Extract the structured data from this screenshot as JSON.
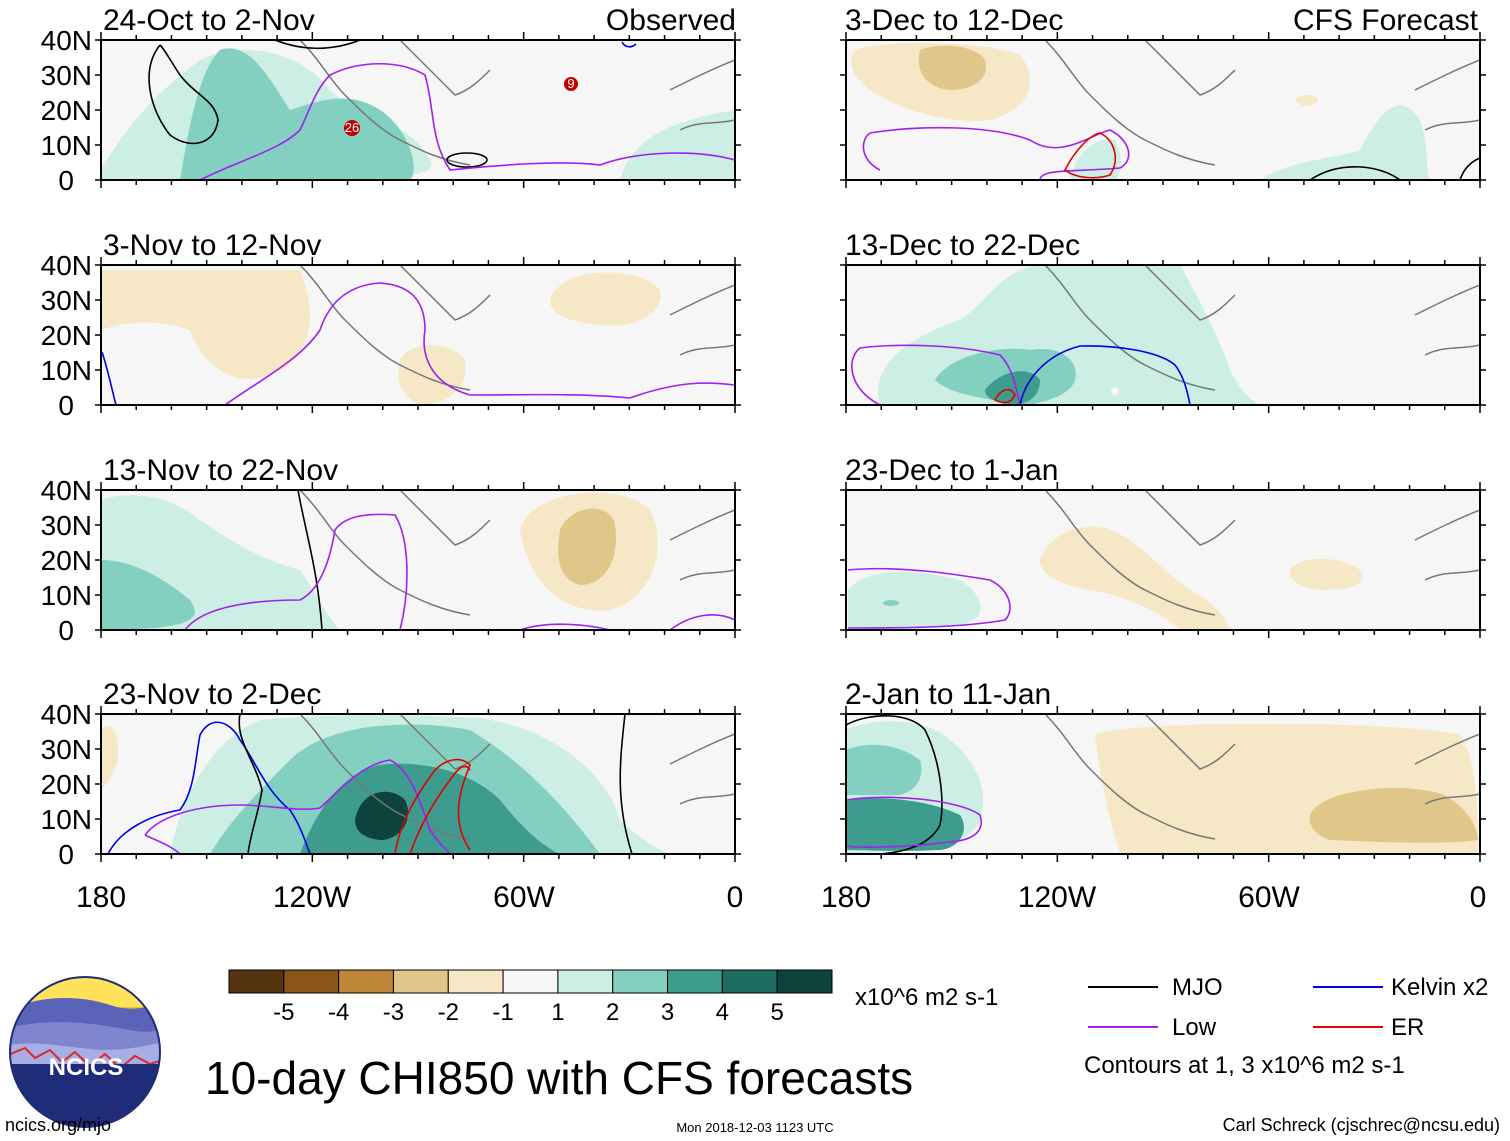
{
  "figure": {
    "title": "10-day CHI850 with CFS forecasts",
    "left_column_label": "Observed",
    "right_column_label": "CFS Forecast",
    "footer_left": "ncics.org/mjo",
    "footer_center": "Mon 2018-12-03 1123 UTC",
    "footer_right": "Carl Schreck (cjschrec@ncsu.edu)",
    "logo_text": "NCICS"
  },
  "panels_left": [
    {
      "title": "24-Oct to 2-Nov"
    },
    {
      "title": "3-Nov to 12-Nov"
    },
    {
      "title": "13-Nov to 22-Nov"
    },
    {
      "title": "23-Nov to 2-Dec"
    }
  ],
  "panels_right": [
    {
      "title": "3-Dec to 12-Dec"
    },
    {
      "title": "13-Dec to 22-Dec"
    },
    {
      "title": "23-Dec to 1-Jan"
    },
    {
      "title": "2-Jan to 11-Jan"
    }
  ],
  "axes": {
    "lat_labels": [
      "40N",
      "30N",
      "20N",
      "10N",
      "0"
    ],
    "lon_labels": [
      "180",
      "120W",
      "60W",
      "0"
    ]
  },
  "colorbar": {
    "labels": [
      "-5",
      "-4",
      "-3",
      "-2",
      "-1",
      "1",
      "2",
      "3",
      "4",
      "5"
    ],
    "units": "x10^6 m2 s-1",
    "colors": [
      "#55350f",
      "#8a5618",
      "#c08637",
      "#e1c68a",
      "#f6e8c6",
      "#f6f6f6",
      "#cdeee4",
      "#84d0c0",
      "#3d9c8e",
      "#1c6e63",
      "#0c443d"
    ]
  },
  "legend": {
    "items": [
      {
        "label": "MJO",
        "color": "#000000"
      },
      {
        "label": "Kelvin x2",
        "color": "#0000e0"
      },
      {
        "label": "Low",
        "color": "#a020f0"
      },
      {
        "label": "ER",
        "color": "#e00000"
      }
    ],
    "note": "Contours at 1, 3 x10^6 m2 s-1"
  },
  "storms": [
    {
      "label": "9"
    },
    {
      "label": "26"
    }
  ]
}
